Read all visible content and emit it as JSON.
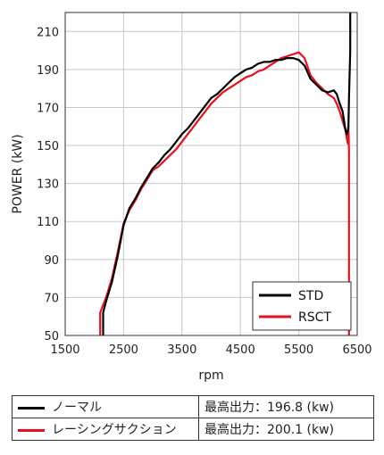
{
  "chart_data": {
    "type": "line",
    "xlabel": "rpm",
    "ylabel": "POWER (kW)",
    "xlim": [
      1500,
      6500
    ],
    "ylim": [
      50,
      220
    ],
    "xticks": [
      "1500",
      "2500",
      "3500",
      "4500",
      "5500",
      "6500"
    ],
    "yticks": [
      "50",
      "70",
      "90",
      "110",
      "130",
      "150",
      "170",
      "190",
      "210"
    ],
    "grid": true,
    "legend_position": "bottom-right",
    "series": [
      {
        "name": "STD",
        "color": "#000000",
        "x": [
          2150,
          2150,
          2200,
          2300,
          2400,
          2500,
          2600,
          2700,
          2800,
          2900,
          3000,
          3100,
          3200,
          3300,
          3400,
          3500,
          3600,
          3700,
          3800,
          3900,
          4000,
          4100,
          4200,
          4300,
          4400,
          4500,
          4600,
          4700,
          4800,
          4900,
          5000,
          5100,
          5200,
          5300,
          5400,
          5500,
          5600,
          5700,
          5800,
          5900,
          6000,
          6100,
          6150,
          6200,
          6250,
          6280,
          6300,
          6320,
          6340,
          6350,
          6360,
          6380,
          6380
        ],
        "y": [
          50,
          62,
          68,
          78,
          92,
          108,
          117,
          122,
          128,
          133,
          138,
          141,
          145,
          148,
          152,
          156,
          159,
          163,
          167,
          171,
          175,
          177,
          180,
          183,
          186,
          188,
          190,
          191,
          193,
          194,
          194,
          195,
          195,
          196,
          196,
          195,
          192,
          185,
          182,
          179,
          178,
          179,
          177,
          172,
          168,
          162,
          158,
          156,
          158,
          160,
          175,
          200,
          220
        ]
      },
      {
        "name": "RSCT",
        "color": "#e8101c",
        "x": [
          2100,
          2100,
          2200,
          2300,
          2400,
          2500,
          2600,
          2700,
          2800,
          2900,
          3000,
          3100,
          3200,
          3300,
          3400,
          3500,
          3600,
          3700,
          3800,
          3900,
          4000,
          4100,
          4200,
          4300,
          4400,
          4500,
          4600,
          4700,
          4800,
          4900,
          5000,
          5100,
          5200,
          5300,
          5400,
          5500,
          5600,
          5700,
          5800,
          5900,
          6000,
          6100,
          6150,
          6200,
          6250,
          6300,
          6320,
          6340,
          6350,
          6360,
          6360
        ],
        "y": [
          50,
          62,
          70,
          80,
          94,
          109,
          116,
          121,
          127,
          132,
          137,
          139,
          142,
          145,
          148,
          152,
          156,
          160,
          164,
          168,
          172,
          175,
          178,
          180,
          182,
          184,
          186,
          187,
          189,
          190,
          192,
          194,
          196,
          197,
          198,
          199,
          196,
          187,
          183,
          180,
          177,
          175,
          172,
          168,
          163,
          158,
          154,
          151,
          160,
          147,
          50
        ]
      }
    ]
  },
  "table": {
    "rows": [
      {
        "swatch_color": "#000000",
        "name": "ノーマル",
        "value": "最高出力：196.8 (kw)"
      },
      {
        "swatch_color": "#e8101c",
        "name": "レーシングサクション",
        "value": "最高出力：200.1 (kw)"
      }
    ]
  }
}
